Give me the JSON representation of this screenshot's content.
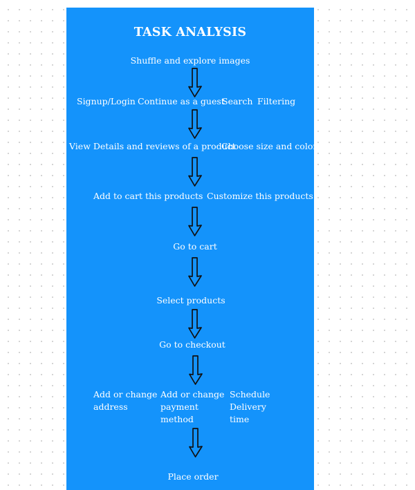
{
  "diagram": {
    "title": "TASK ANALYSIS",
    "steps": [
      {
        "options": [
          "Shuffle and explore images"
        ]
      },
      {
        "options": [
          "Signup/Login",
          "Continue as a guest",
          "Search",
          "Filtering"
        ]
      },
      {
        "options": [
          "View Details and reviews of a product",
          "Choose size and color"
        ]
      },
      {
        "options": [
          "Add to cart this products",
          "Customize this products"
        ]
      },
      {
        "options": [
          "Go to cart"
        ]
      },
      {
        "options": [
          "Select products"
        ]
      },
      {
        "options": [
          "Go to checkout"
        ]
      },
      {
        "options": [
          "Add or change\naddress",
          "Add or change\npayment\nmethod",
          "Schedule\nDelivery\ntime"
        ]
      },
      {
        "options": [
          "Place order"
        ]
      }
    ],
    "colors": {
      "board": "#1493fb",
      "text": "#ffffff",
      "arrow_outline": "#111111"
    },
    "icons": {
      "flow_arrow": "hand-drawn-down-arrow-icon"
    }
  }
}
